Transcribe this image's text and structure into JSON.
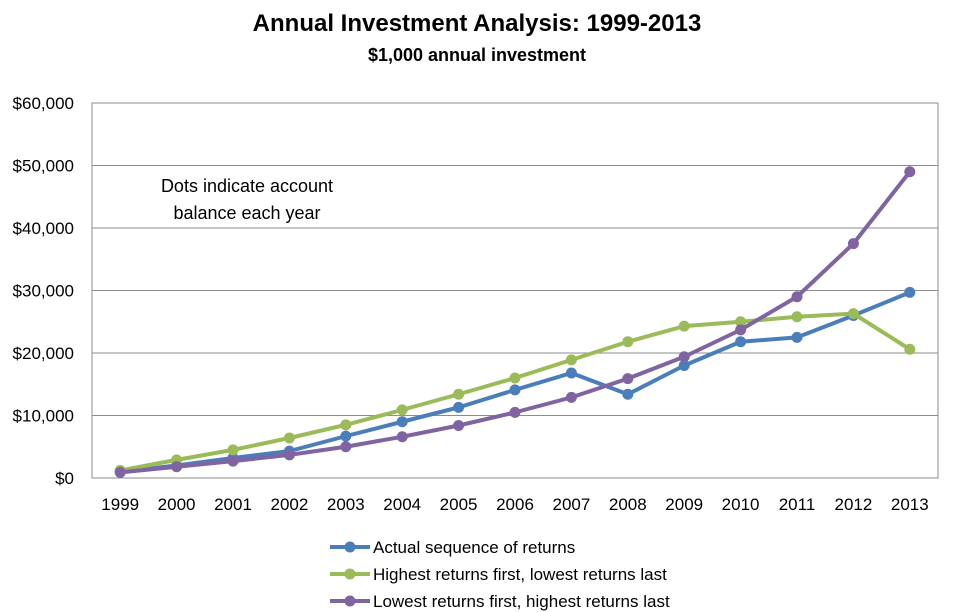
{
  "chart_data": {
    "type": "line",
    "title": "Annual Investment Analysis:  1999-2013",
    "subtitle": "$1,000 annual investment",
    "xlabel": "",
    "ylabel": "",
    "x": [
      "1999",
      "2000",
      "2001",
      "2002",
      "2003",
      "2004",
      "2005",
      "2006",
      "2007",
      "2008",
      "2009",
      "2010",
      "2011",
      "2012",
      "2013"
    ],
    "ylim": [
      0,
      60000
    ],
    "yticks": [
      0,
      10000,
      20000,
      30000,
      40000,
      50000,
      60000
    ],
    "ytick_labels": [
      "$0",
      "$10,000",
      "$20,000",
      "$30,000",
      "$40,000",
      "$50,000",
      "$60,000"
    ],
    "grid": true,
    "legend_position": "bottom",
    "annotation": [
      "Dots indicate account",
      "balance each year"
    ],
    "series": [
      {
        "name": "Actual sequence of returns",
        "color": "#4a7ebb",
        "values": [
          1000,
          2000,
          3200,
          4300,
          6700,
          9000,
          11300,
          14100,
          16800,
          13400,
          18000,
          21800,
          22500,
          26000,
          29700
        ]
      },
      {
        "name": "Highest returns first, lowest returns last",
        "color": "#9bbb59",
        "values": [
          1200,
          2900,
          4500,
          6400,
          8500,
          10900,
          13400,
          16000,
          18900,
          21800,
          24300,
          25000,
          25800,
          26300,
          20600
        ]
      },
      {
        "name": "Lowest returns first, highest returns last",
        "color": "#8064a2",
        "values": [
          900,
          1800,
          2700,
          3700,
          5000,
          6600,
          8400,
          10500,
          12900,
          15900,
          19400,
          23700,
          29000,
          37500,
          49000
        ]
      }
    ]
  }
}
